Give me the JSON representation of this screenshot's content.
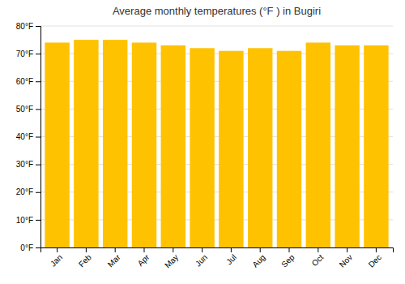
{
  "chart_data": {
    "type": "bar",
    "title": "Average monthly temperatures (°F ) in Bugiri",
    "categories": [
      "Jan",
      "Feb",
      "Mar",
      "Apr",
      "May",
      "Jun",
      "Jul",
      "Aug",
      "Sep",
      "Oct",
      "Nov",
      "Dec"
    ],
    "values": [
      74,
      75,
      75,
      74,
      73,
      72,
      71,
      72,
      71,
      74,
      73,
      73
    ],
    "color": "#FFC200",
    "ylim": [
      0,
      80
    ],
    "yticks": [
      {
        "value": 0,
        "label": "0°F"
      },
      {
        "value": 10,
        "label": "10°F"
      },
      {
        "value": 20,
        "label": "20°F"
      },
      {
        "value": 30,
        "label": "30°F"
      },
      {
        "value": 40,
        "label": "40°F"
      },
      {
        "value": 50,
        "label": "50°F"
      },
      {
        "value": 60,
        "label": "60°F"
      },
      {
        "value": 70,
        "label": "70°F"
      },
      {
        "value": 80,
        "label": "80°F"
      }
    ],
    "grid": true
  }
}
